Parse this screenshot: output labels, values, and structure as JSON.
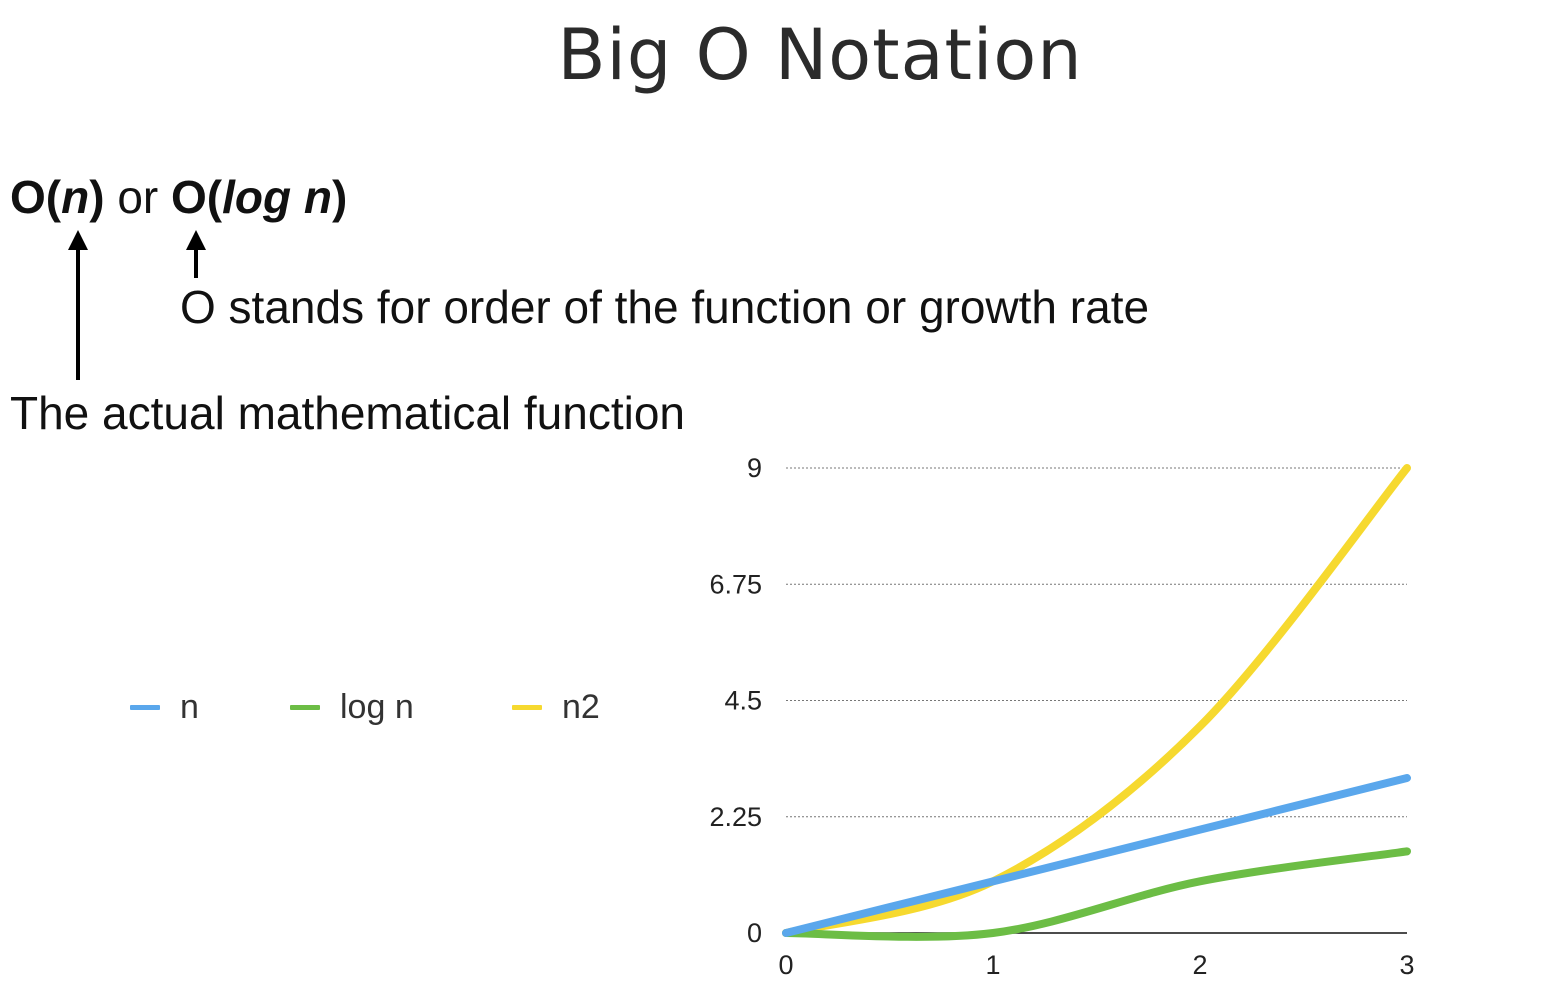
{
  "slide": {
    "title": "Big O Notation",
    "notation": {
      "part1_prefix": "O(",
      "part1_var": "n",
      "part1_suffix": ")",
      "connector": " or ",
      "part2_prefix": "O(",
      "part2_var": "log n",
      "part2_suffix": ")"
    },
    "annotation_order": "O stands for order of the function or growth rate",
    "annotation_function": "The actual mathematical function"
  },
  "chart_data": {
    "type": "line",
    "title": "",
    "xlabel": "",
    "ylabel": "",
    "x_ticks": [
      "0",
      "1",
      "2",
      "3"
    ],
    "y_ticks": [
      "0",
      "2.25",
      "4.5",
      "6.75",
      "9"
    ],
    "xlim": [
      0,
      3
    ],
    "ylim": [
      0,
      9
    ],
    "grid": "horizontal-dotted",
    "legend_position": "left",
    "series": [
      {
        "name": "n",
        "color": "#5aa7ec",
        "x": [
          0,
          1,
          2,
          3
        ],
        "values": [
          0,
          1,
          2,
          3
        ]
      },
      {
        "name": "log n",
        "color": "#6cbd45",
        "x": [
          0,
          1,
          2,
          3
        ],
        "values": [
          0,
          0,
          1,
          1.58
        ]
      },
      {
        "name": "n2",
        "color": "#f6d92f",
        "x": [
          0,
          1,
          2,
          3
        ],
        "values": [
          0,
          1,
          4,
          9
        ]
      }
    ]
  }
}
